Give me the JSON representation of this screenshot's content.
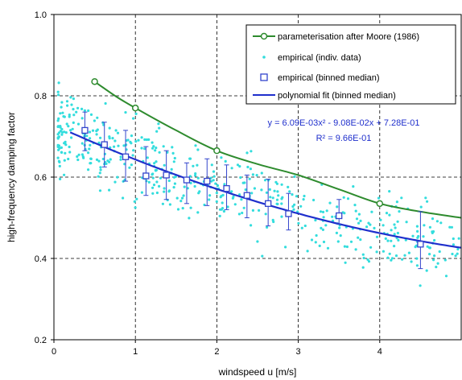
{
  "chart_data": {
    "type": "scatter",
    "title": "",
    "xlabel": "windspeed u [m/s]",
    "ylabel": "high-frequency damping factor",
    "xlim": [
      0,
      5
    ],
    "ylim": [
      0.2,
      1.0
    ],
    "x_ticks": [
      "0",
      "1",
      "2",
      "3",
      "4"
    ],
    "y_ticks": [
      "0.2",
      "0.4",
      "0.6",
      "0.8",
      "1.0"
    ],
    "grid": "dashed",
    "legend_position": "top-right",
    "series": [
      {
        "name": "parameterisation after Moore (1986)",
        "kind": "line-markers",
        "color": "#2e8b2e",
        "x": [
          0.5,
          1.0,
          2.0,
          4.0
        ],
        "y": [
          0.835,
          0.77,
          0.665,
          0.535
        ],
        "curve": {
          "x": [
            0.5,
            0.75,
            1.0,
            1.5,
            2.0,
            2.5,
            3.0,
            3.5,
            4.0,
            4.5,
            5.0
          ],
          "y": [
            0.835,
            0.8,
            0.77,
            0.715,
            0.665,
            0.632,
            0.605,
            0.57,
            0.535,
            0.515,
            0.5
          ]
        }
      },
      {
        "name": "empirical (indiv. data)",
        "kind": "scatter",
        "color": "#33dddd",
        "generator": {
          "n": 520,
          "seed": 7,
          "x_range": [
            0.05,
            5.0
          ],
          "spread": 0.075
        }
      },
      {
        "name": "empirical (binned median)",
        "kind": "markers-errorbars",
        "color": "#3344cc",
        "x": [
          0.38,
          0.62,
          0.88,
          1.13,
          1.38,
          1.63,
          1.88,
          2.12,
          2.37,
          2.63,
          2.88,
          3.5,
          4.5
        ],
        "y": [
          0.715,
          0.68,
          0.65,
          0.603,
          0.605,
          0.593,
          0.59,
          0.572,
          0.555,
          0.535,
          0.51,
          0.505,
          0.435
        ],
        "y_low": [
          0.665,
          0.625,
          0.59,
          0.555,
          0.545,
          0.535,
          0.53,
          0.52,
          0.5,
          0.48,
          0.47,
          0.485,
          0.375
        ],
        "y_high": [
          0.76,
          0.735,
          0.715,
          0.675,
          0.665,
          0.635,
          0.645,
          0.63,
          0.605,
          0.595,
          0.56,
          0.545,
          0.515
        ]
      },
      {
        "name": "polynomial fit (binned median)",
        "kind": "line",
        "color": "#1f2fcc",
        "polynomial": {
          "a": 0.00609,
          "b": -0.0908,
          "c": 0.728
        },
        "x_range": [
          0.2,
          5.0
        ]
      }
    ],
    "annotations": {
      "equation": "y = 6.09E-03x² - 9.08E-02x + 7.28E-01",
      "r_squared": "R² = 9.66E-01"
    }
  }
}
